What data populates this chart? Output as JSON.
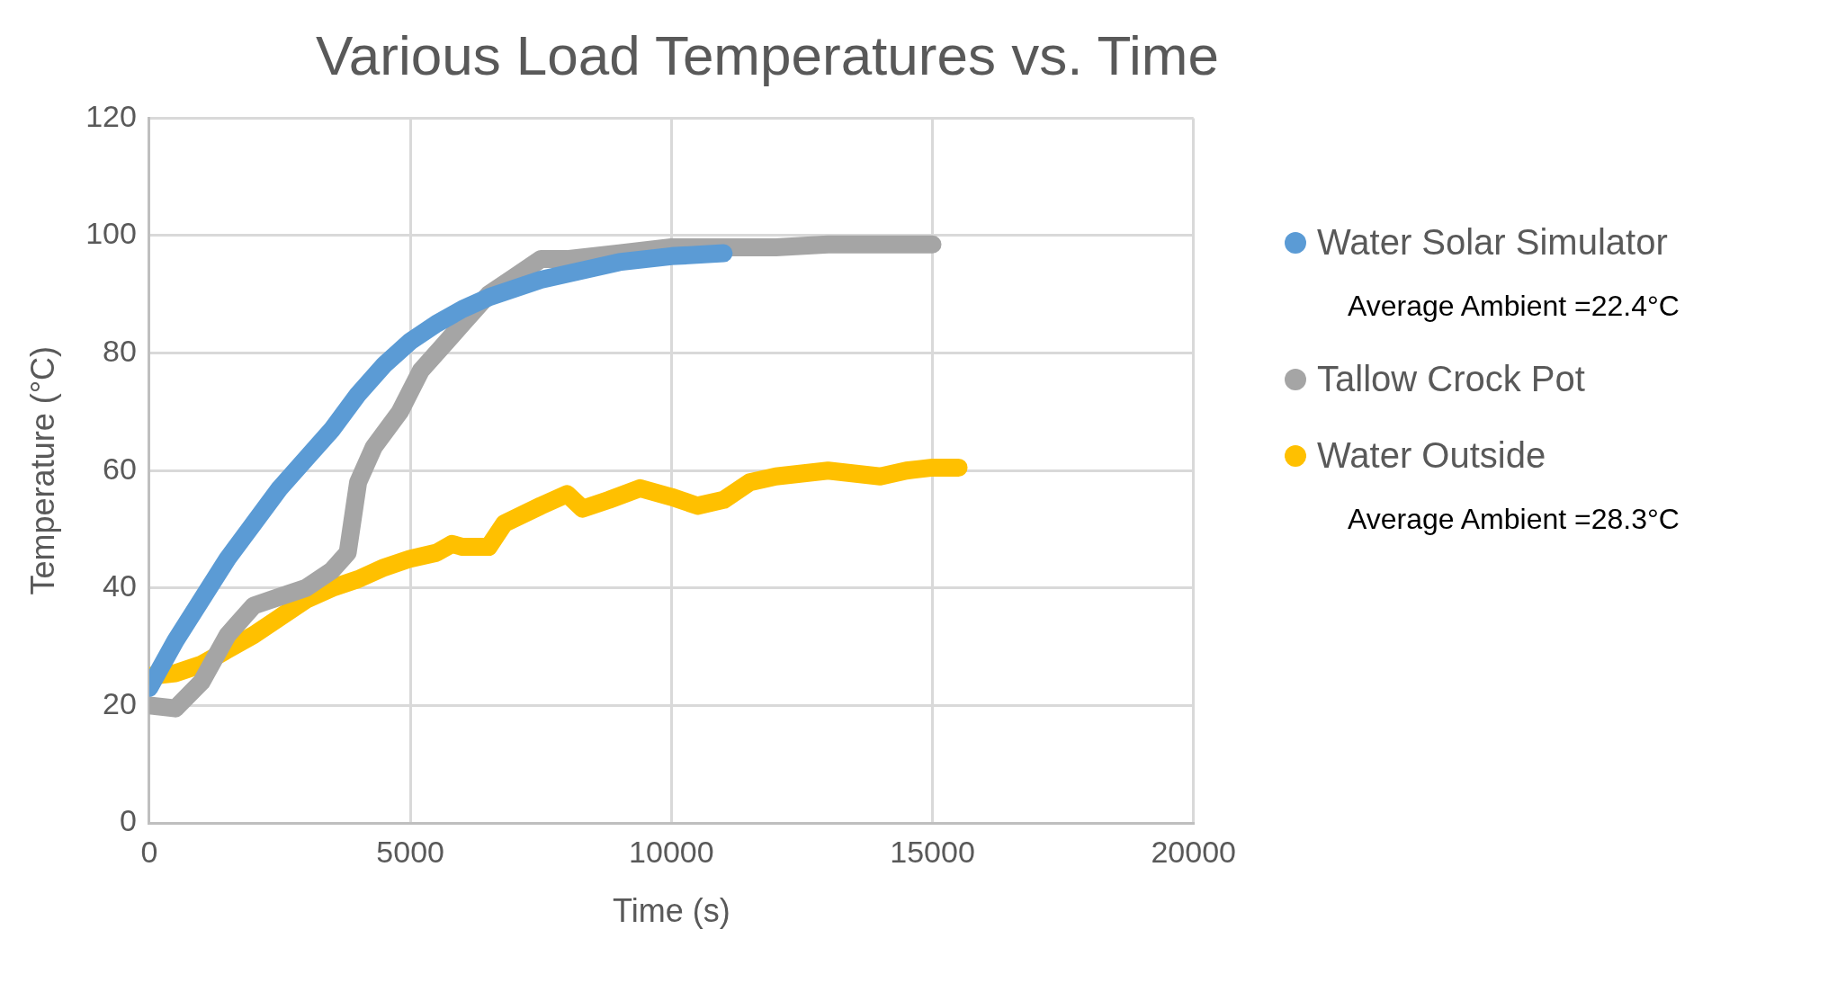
{
  "chart_data": {
    "type": "line",
    "title": "Various Load Temperatures vs. Time",
    "xlabel": "Time (s)",
    "ylabel": "Temperature (°C)",
    "xlim": [
      0,
      20000
    ],
    "xticks": [
      0,
      5000,
      10000,
      15000,
      20000
    ],
    "ylim": [
      0,
      120
    ],
    "yticks": [
      0,
      20,
      40,
      60,
      80,
      100,
      120
    ],
    "grid": true,
    "legend": "right",
    "line_style": "solid",
    "annotations": [
      "Average Ambient =22.4°C",
      "Average Ambient =28.3°C"
    ],
    "series": [
      {
        "name": "Water Solar Simulator",
        "color": "#5b9bd5",
        "x": [
          0,
          500,
          1000,
          1500,
          2000,
          2500,
          3000,
          3500,
          4000,
          4500,
          5000,
          5500,
          6000,
          6500,
          7000,
          7500,
          8000,
          8500,
          9000,
          9500,
          10000,
          11000
        ],
        "values": [
          23,
          31,
          38,
          45,
          51,
          57,
          62,
          67,
          73,
          78,
          82,
          85,
          87.5,
          89.5,
          91,
          92.5,
          93.5,
          94.5,
          95.5,
          96,
          96.5,
          97
        ]
      },
      {
        "name": "Tallow Crock Pot",
        "color": "#a5a5a5",
        "x": [
          0,
          500,
          1000,
          1500,
          2000,
          2500,
          3000,
          3500,
          3800,
          4000,
          4300,
          4800,
          5200,
          5600,
          6000,
          6500,
          7000,
          7500,
          8000,
          9000,
          10000,
          11000,
          12000,
          13000,
          14000,
          15000
        ],
        "values": [
          20,
          19.5,
          24,
          32,
          37,
          38.5,
          40,
          43,
          46,
          58,
          64,
          70,
          77,
          81,
          85,
          90,
          93,
          96,
          96,
          97,
          98,
          98,
          98,
          98.5,
          98.5,
          98.5
        ]
      },
      {
        "name": "Water Outside",
        "color": "#ffc000",
        "x": [
          0,
          500,
          1000,
          1500,
          2000,
          2500,
          3000,
          3500,
          4000,
          4500,
          5000,
          5500,
          5800,
          6000,
          6500,
          6800,
          7500,
          8000,
          8300,
          8800,
          9400,
          10000,
          10500,
          11000,
          11500,
          12000,
          13000,
          13500,
          14000,
          14500,
          15000,
          15500
        ],
        "values": [
          25,
          25.5,
          27,
          29.5,
          32,
          35,
          38,
          40,
          41.5,
          43.5,
          45,
          46,
          47.5,
          47,
          47,
          51,
          54,
          56,
          53.5,
          55,
          57,
          55.5,
          54,
          55,
          58,
          59,
          60,
          59.5,
          59,
          60,
          60.5,
          60.5
        ]
      }
    ]
  }
}
